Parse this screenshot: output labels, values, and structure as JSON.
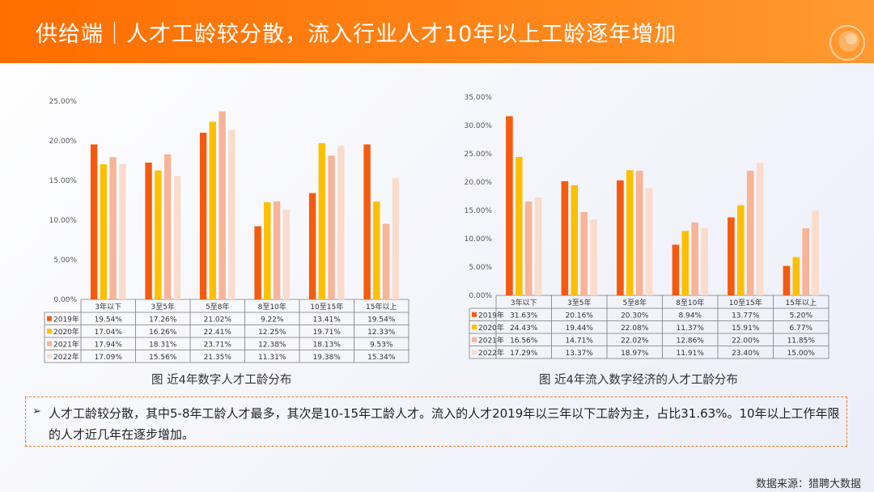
{
  "header": {
    "title": "供给端｜人才工龄较分散，流入行业人才10年以上工龄逐年增加"
  },
  "colors": {
    "primary": "#ff6d00",
    "series": [
      "#f55a0f",
      "#fcc000",
      "#f7b497",
      "#f9dccc"
    ]
  },
  "chart_data": [
    {
      "type": "bar",
      "categories": [
        "3年以下",
        "3至5年",
        "5至8年",
        "8至10年",
        "10至15年",
        "15年以上"
      ],
      "ylim": [
        0,
        25
      ],
      "yticks": [
        "0.00%",
        "5.00%",
        "10.00%",
        "15.00%",
        "20.00%",
        "25.00%"
      ],
      "series": [
        {
          "name": "2019年",
          "values": [
            19.54,
            17.26,
            21.02,
            9.22,
            13.41,
            19.54
          ],
          "labels": [
            "19.54%",
            "17.26%",
            "21.02%",
            "9.22%",
            "13.41%",
            "19.54%"
          ]
        },
        {
          "name": "2020年",
          "values": [
            17.04,
            16.26,
            22.41,
            12.25,
            19.71,
            12.33
          ],
          "labels": [
            "17.04%",
            "16.26%",
            "22.41%",
            "12.25%",
            "19.71%",
            "12.33%"
          ]
        },
        {
          "name": "2021年",
          "values": [
            17.94,
            18.31,
            23.71,
            12.38,
            18.13,
            9.53
          ],
          "labels": [
            "17.94%",
            "18.31%",
            "23.71%",
            "12.38%",
            "18.13%",
            "9.53%"
          ]
        },
        {
          "name": "2022年",
          "values": [
            17.09,
            15.56,
            21.35,
            11.31,
            19.38,
            15.34
          ],
          "labels": [
            "17.09%",
            "15.56%",
            "21.35%",
            "11.31%",
            "19.38%",
            "15.34%"
          ]
        }
      ],
      "caption": "图 近4年数字人才工龄分布"
    },
    {
      "type": "bar",
      "categories": [
        "3年以下",
        "3至5年",
        "5至8年",
        "8至10年",
        "10至15年",
        "15年以上"
      ],
      "ylim": [
        0,
        35
      ],
      "yticks": [
        "0.00%",
        "5.00%",
        "10.00%",
        "15.00%",
        "20.00%",
        "25.00%",
        "30.00%",
        "35.00%"
      ],
      "series": [
        {
          "name": "2019年",
          "values": [
            31.63,
            20.16,
            20.3,
            8.94,
            13.77,
            5.2
          ],
          "labels": [
            "31.63%",
            "20.16%",
            "20.30%",
            "8.94%",
            "13.77%",
            "5.20%"
          ]
        },
        {
          "name": "2020年",
          "values": [
            24.43,
            19.44,
            22.08,
            11.37,
            15.91,
            6.77
          ],
          "labels": [
            "24.43%",
            "19.44%",
            "22.08%",
            "11.37%",
            "15.91%",
            "6.77%"
          ]
        },
        {
          "name": "2021年",
          "values": [
            16.56,
            14.71,
            22.02,
            12.86,
            22.0,
            11.85
          ],
          "labels": [
            "16.56%",
            "14.71%",
            "22.02%",
            "12.86%",
            "22.00%",
            "11.85%"
          ]
        },
        {
          "name": "2022年",
          "values": [
            17.29,
            13.37,
            18.97,
            11.91,
            23.4,
            15.0
          ],
          "labels": [
            "17.29%",
            "13.37%",
            "18.97%",
            "11.91%",
            "23.40%",
            "15.00%"
          ]
        }
      ],
      "caption": "图 近4年流入数字经济的人才工龄分布"
    }
  ],
  "note": {
    "bullet": "➢",
    "text": "人才工龄较分散，其中5-8年工龄人才最多，其次是10-15年工龄人才。流入的人才2019年以三年以下工龄为主，占比31.63%。10年以上工作年限的人才近几年在逐步增加。"
  },
  "source": "数据来源：猎聘大数据"
}
